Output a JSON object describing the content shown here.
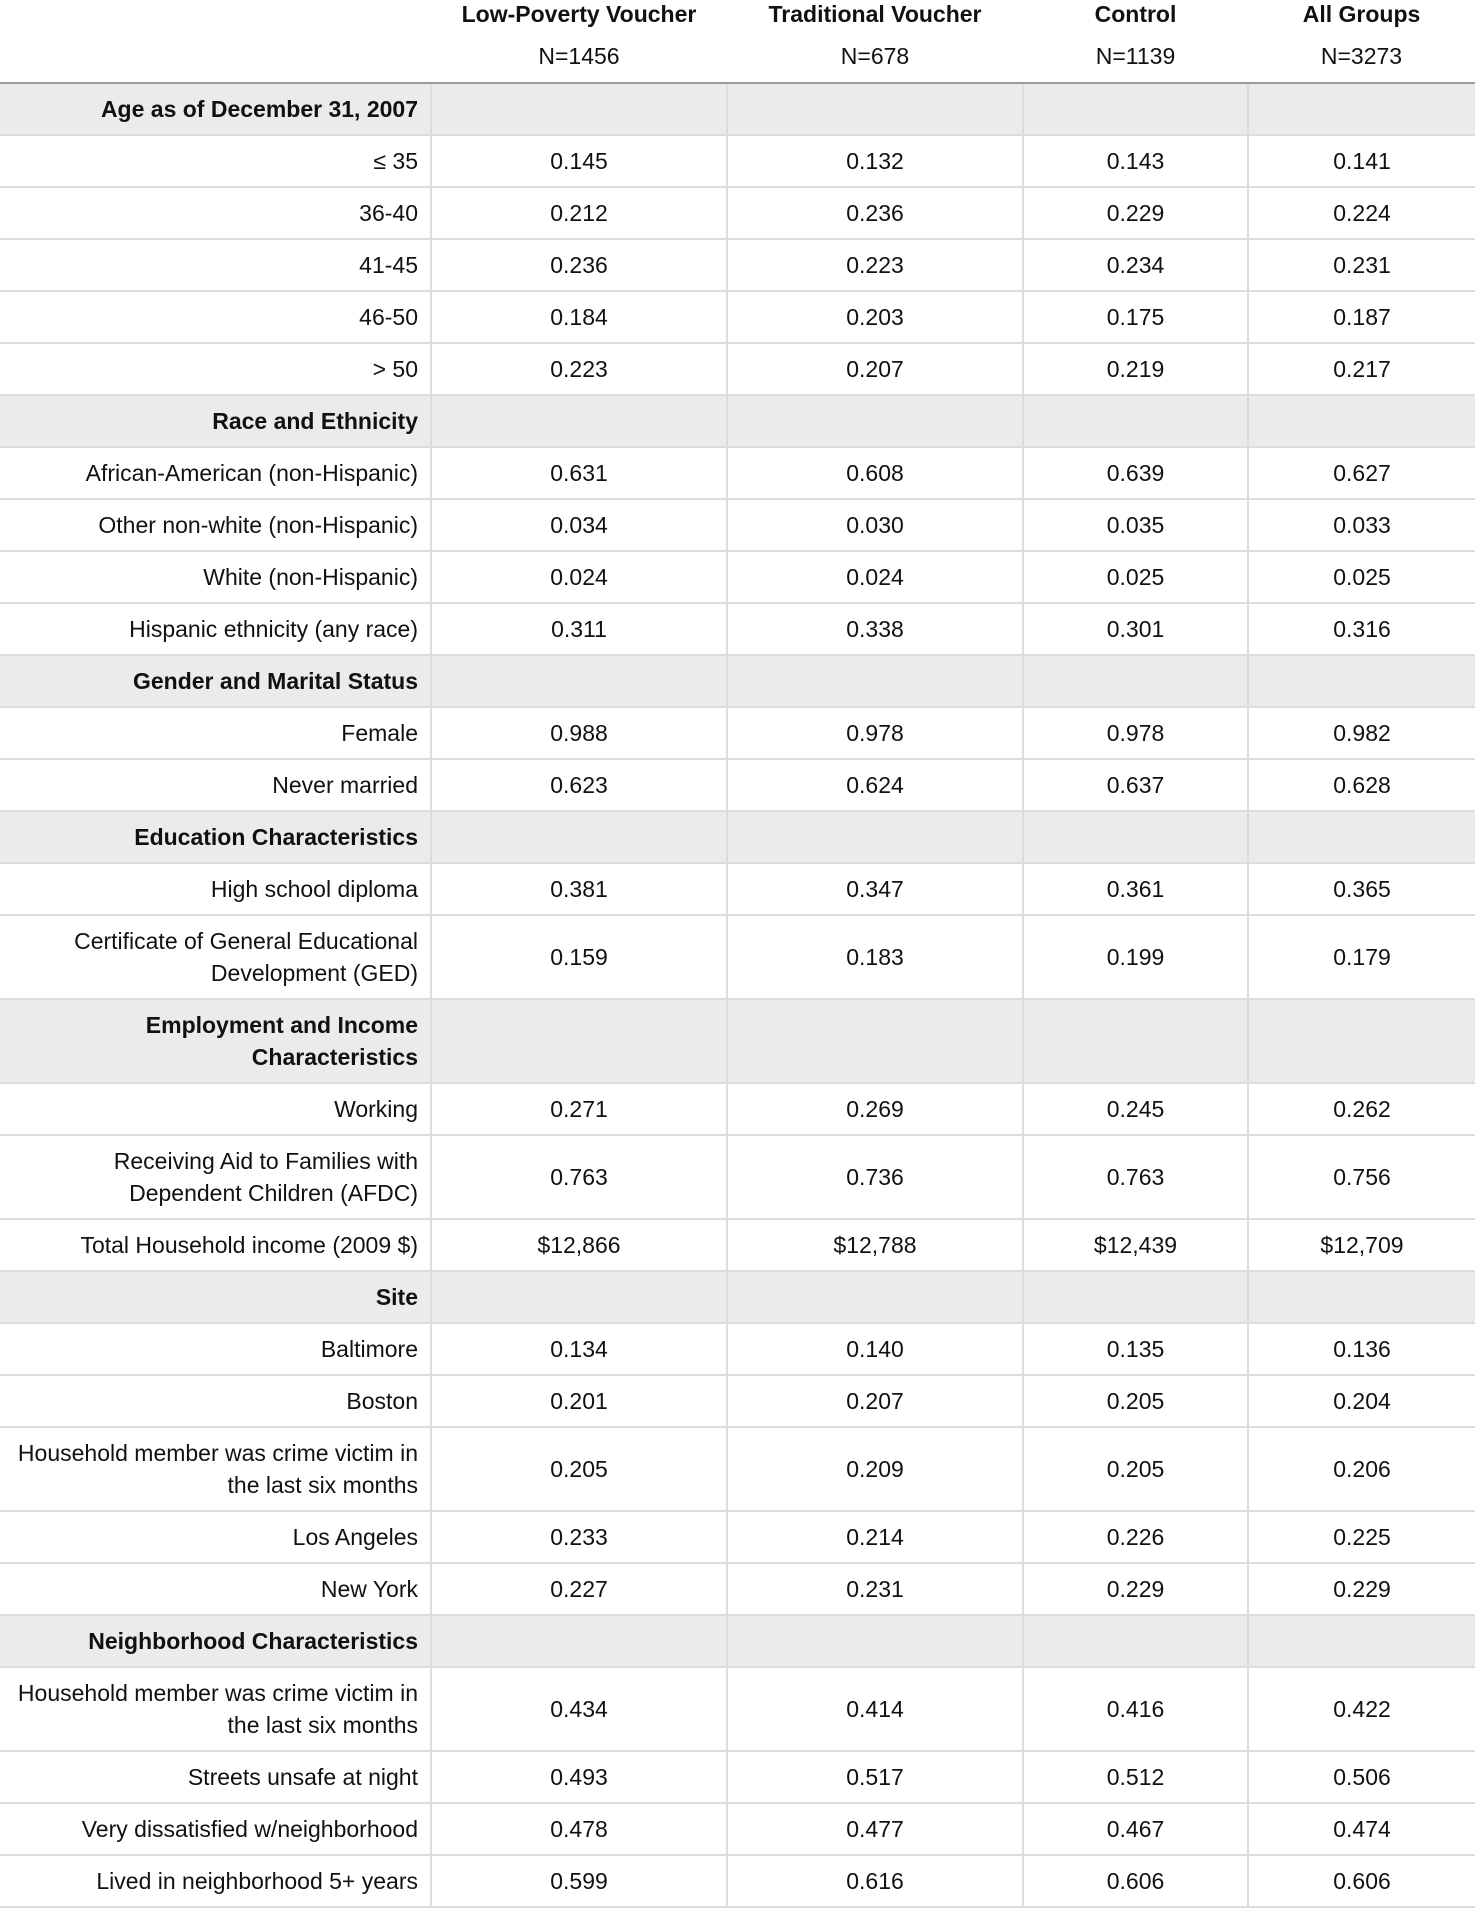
{
  "header": {
    "columns": [
      {
        "name": "Low-Poverty Voucher",
        "n": "N=1456"
      },
      {
        "name": "Traditional Voucher",
        "n": "N=678"
      },
      {
        "name": "Control",
        "n": "N=1139"
      },
      {
        "name": "All Groups",
        "n": "N=3273"
      }
    ]
  },
  "sections": [
    {
      "title": "Age as of December 31, 2007",
      "rows": [
        {
          "label": "≤ 35",
          "values": [
            "0.145",
            "0.132",
            "0.143",
            "0.141"
          ]
        },
        {
          "label": "36-40",
          "values": [
            "0.212",
            "0.236",
            "0.229",
            "0.224"
          ]
        },
        {
          "label": "41-45",
          "values": [
            "0.236",
            "0.223",
            "0.234",
            "0.231"
          ]
        },
        {
          "label": "46-50",
          "values": [
            "0.184",
            "0.203",
            "0.175",
            "0.187"
          ]
        },
        {
          "label": "> 50",
          "values": [
            "0.223",
            "0.207",
            "0.219",
            "0.217"
          ]
        }
      ]
    },
    {
      "title": "Race and Ethnicity",
      "rows": [
        {
          "label": "African-American (non-Hispanic)",
          "values": [
            "0.631",
            "0.608",
            "0.639",
            "0.627"
          ]
        },
        {
          "label": "Other non-white (non-Hispanic)",
          "values": [
            "0.034",
            "0.030",
            "0.035",
            "0.033"
          ]
        },
        {
          "label": "White (non-Hispanic)",
          "values": [
            "0.024",
            "0.024",
            "0.025",
            "0.025"
          ]
        },
        {
          "label": "Hispanic ethnicity (any race)",
          "values": [
            "0.311",
            "0.338",
            "0.301",
            "0.316"
          ]
        }
      ]
    },
    {
      "title": "Gender and Marital Status",
      "rows": [
        {
          "label": "Female",
          "values": [
            "0.988",
            "0.978",
            "0.978",
            "0.982"
          ]
        },
        {
          "label": "Never married",
          "values": [
            "0.623",
            "0.624",
            "0.637",
            "0.628"
          ]
        }
      ]
    },
    {
      "title": "Education Characteristics",
      "rows": [
        {
          "label": "High school diploma",
          "values": [
            "0.381",
            "0.347",
            "0.361",
            "0.365"
          ]
        },
        {
          "label": "Certificate of General Educational Development (GED)",
          "values": [
            "0.159",
            "0.183",
            "0.199",
            "0.179"
          ]
        }
      ]
    },
    {
      "title": "Employment and Income Characteristics",
      "rows": [
        {
          "label": "Working",
          "values": [
            "0.271",
            "0.269",
            "0.245",
            "0.262"
          ]
        },
        {
          "label": "Receiving Aid to Families with Dependent Children (AFDC)",
          "values": [
            "0.763",
            "0.736",
            "0.763",
            "0.756"
          ]
        },
        {
          "label": "Total Household income (2009 $)",
          "values": [
            "$12,866",
            "$12,788",
            "$12,439",
            "$12,709"
          ]
        }
      ]
    },
    {
      "title": "Site",
      "rows": [
        {
          "label": "Baltimore",
          "values": [
            "0.134",
            "0.140",
            "0.135",
            "0.136"
          ]
        },
        {
          "label": "Boston",
          "values": [
            "0.201",
            "0.207",
            "0.205",
            "0.204"
          ]
        },
        {
          "label": "Household member was crime victim in\nthe last six months",
          "values": [
            "0.205",
            "0.209",
            "0.205",
            "0.206"
          ]
        },
        {
          "label": "Los Angeles",
          "values": [
            "0.233",
            "0.214",
            "0.226",
            "0.225"
          ]
        },
        {
          "label": "New York",
          "values": [
            "0.227",
            "0.231",
            "0.229",
            "0.229"
          ]
        }
      ]
    },
    {
      "title": "Neighborhood Characteristics",
      "rows": [
        {
          "label": "Household member was crime victim in the last six months",
          "values": [
            "0.434",
            "0.414",
            "0.416",
            "0.422"
          ]
        },
        {
          "label": "Streets unsafe at night",
          "values": [
            "0.493",
            "0.517",
            "0.512",
            "0.506"
          ]
        },
        {
          "label": "Very dissatisfied w/neighborhood",
          "values": [
            "0.478",
            "0.477",
            "0.467",
            "0.474"
          ]
        },
        {
          "label": "Lived in neighborhood 5+ years",
          "values": [
            "0.599",
            "0.616",
            "0.606",
            "0.606"
          ]
        }
      ]
    }
  ]
}
